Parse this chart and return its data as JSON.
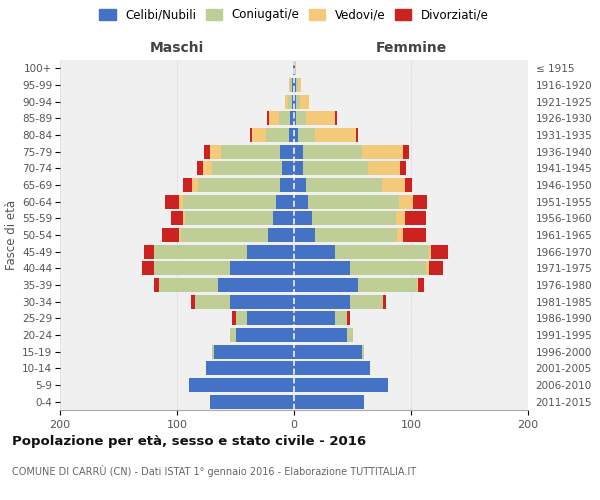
{
  "age_groups": [
    "0-4",
    "5-9",
    "10-14",
    "15-19",
    "20-24",
    "25-29",
    "30-34",
    "35-39",
    "40-44",
    "45-49",
    "50-54",
    "55-59",
    "60-64",
    "65-69",
    "70-74",
    "75-79",
    "80-84",
    "85-89",
    "90-94",
    "95-99",
    "100+"
  ],
  "birth_years": [
    "2011-2015",
    "2006-2010",
    "2001-2005",
    "1996-2000",
    "1991-1995",
    "1986-1990",
    "1981-1985",
    "1976-1980",
    "1971-1975",
    "1966-1970",
    "1961-1965",
    "1956-1960",
    "1951-1955",
    "1946-1950",
    "1941-1945",
    "1936-1940",
    "1931-1935",
    "1926-1930",
    "1921-1925",
    "1916-1920",
    "≤ 1915"
  ],
  "maschi": {
    "celibi": [
      72,
      90,
      75,
      68,
      50,
      40,
      55,
      65,
      55,
      40,
      22,
      18,
      15,
      12,
      10,
      12,
      4,
      3,
      2,
      2,
      1
    ],
    "coniugati": [
      0,
      0,
      0,
      2,
      5,
      10,
      30,
      50,
      65,
      80,
      75,
      75,
      80,
      70,
      60,
      50,
      20,
      10,
      3,
      1,
      0
    ],
    "vedovi": [
      0,
      0,
      0,
      0,
      0,
      0,
      0,
      0,
      0,
      0,
      1,
      2,
      3,
      5,
      8,
      10,
      12,
      8,
      3,
      1,
      0
    ],
    "divorziati": [
      0,
      0,
      0,
      0,
      0,
      3,
      3,
      5,
      10,
      8,
      15,
      10,
      12,
      8,
      5,
      5,
      2,
      2,
      0,
      0,
      0
    ]
  },
  "femmine": {
    "nubili": [
      60,
      80,
      65,
      58,
      45,
      35,
      48,
      55,
      48,
      35,
      18,
      15,
      12,
      10,
      8,
      8,
      3,
      2,
      2,
      2,
      1
    ],
    "coniugate": [
      0,
      0,
      0,
      2,
      5,
      10,
      28,
      50,
      65,
      80,
      70,
      72,
      78,
      65,
      55,
      50,
      15,
      8,
      3,
      1,
      0
    ],
    "vedove": [
      0,
      0,
      0,
      0,
      0,
      0,
      0,
      1,
      2,
      2,
      5,
      8,
      12,
      20,
      28,
      35,
      35,
      25,
      8,
      3,
      1
    ],
    "divorziate": [
      0,
      0,
      0,
      0,
      0,
      3,
      3,
      5,
      12,
      15,
      20,
      18,
      12,
      6,
      5,
      5,
      2,
      2,
      0,
      0,
      0
    ]
  },
  "colors": {
    "celibi": "#4472C4",
    "coniugati": "#BFCE97",
    "vedovi": "#F5C97A",
    "divorziati": "#CC2222"
  },
  "legend_labels": [
    "Celibi/Nubili",
    "Coniugati/e",
    "Vedovi/e",
    "Divorziati/e"
  ],
  "legend_colors": [
    "#4472C4",
    "#BFCE97",
    "#F5C97A",
    "#CC2222"
  ],
  "title": "Popolazione per età, sesso e stato civile - 2016",
  "subtitle": "COMUNE DI CARRÙ (CN) - Dati ISTAT 1° gennaio 2016 - Elaborazione TUTTITALIA.IT",
  "xlabel_left": "Maschi",
  "xlabel_right": "Femmine",
  "ylabel_left": "Fasce di età",
  "xlim": 200,
  "bg_color": "#ffffff",
  "plot_bg": "#f0f0f0",
  "grid_color": "#cccccc",
  "bar_height": 0.85
}
